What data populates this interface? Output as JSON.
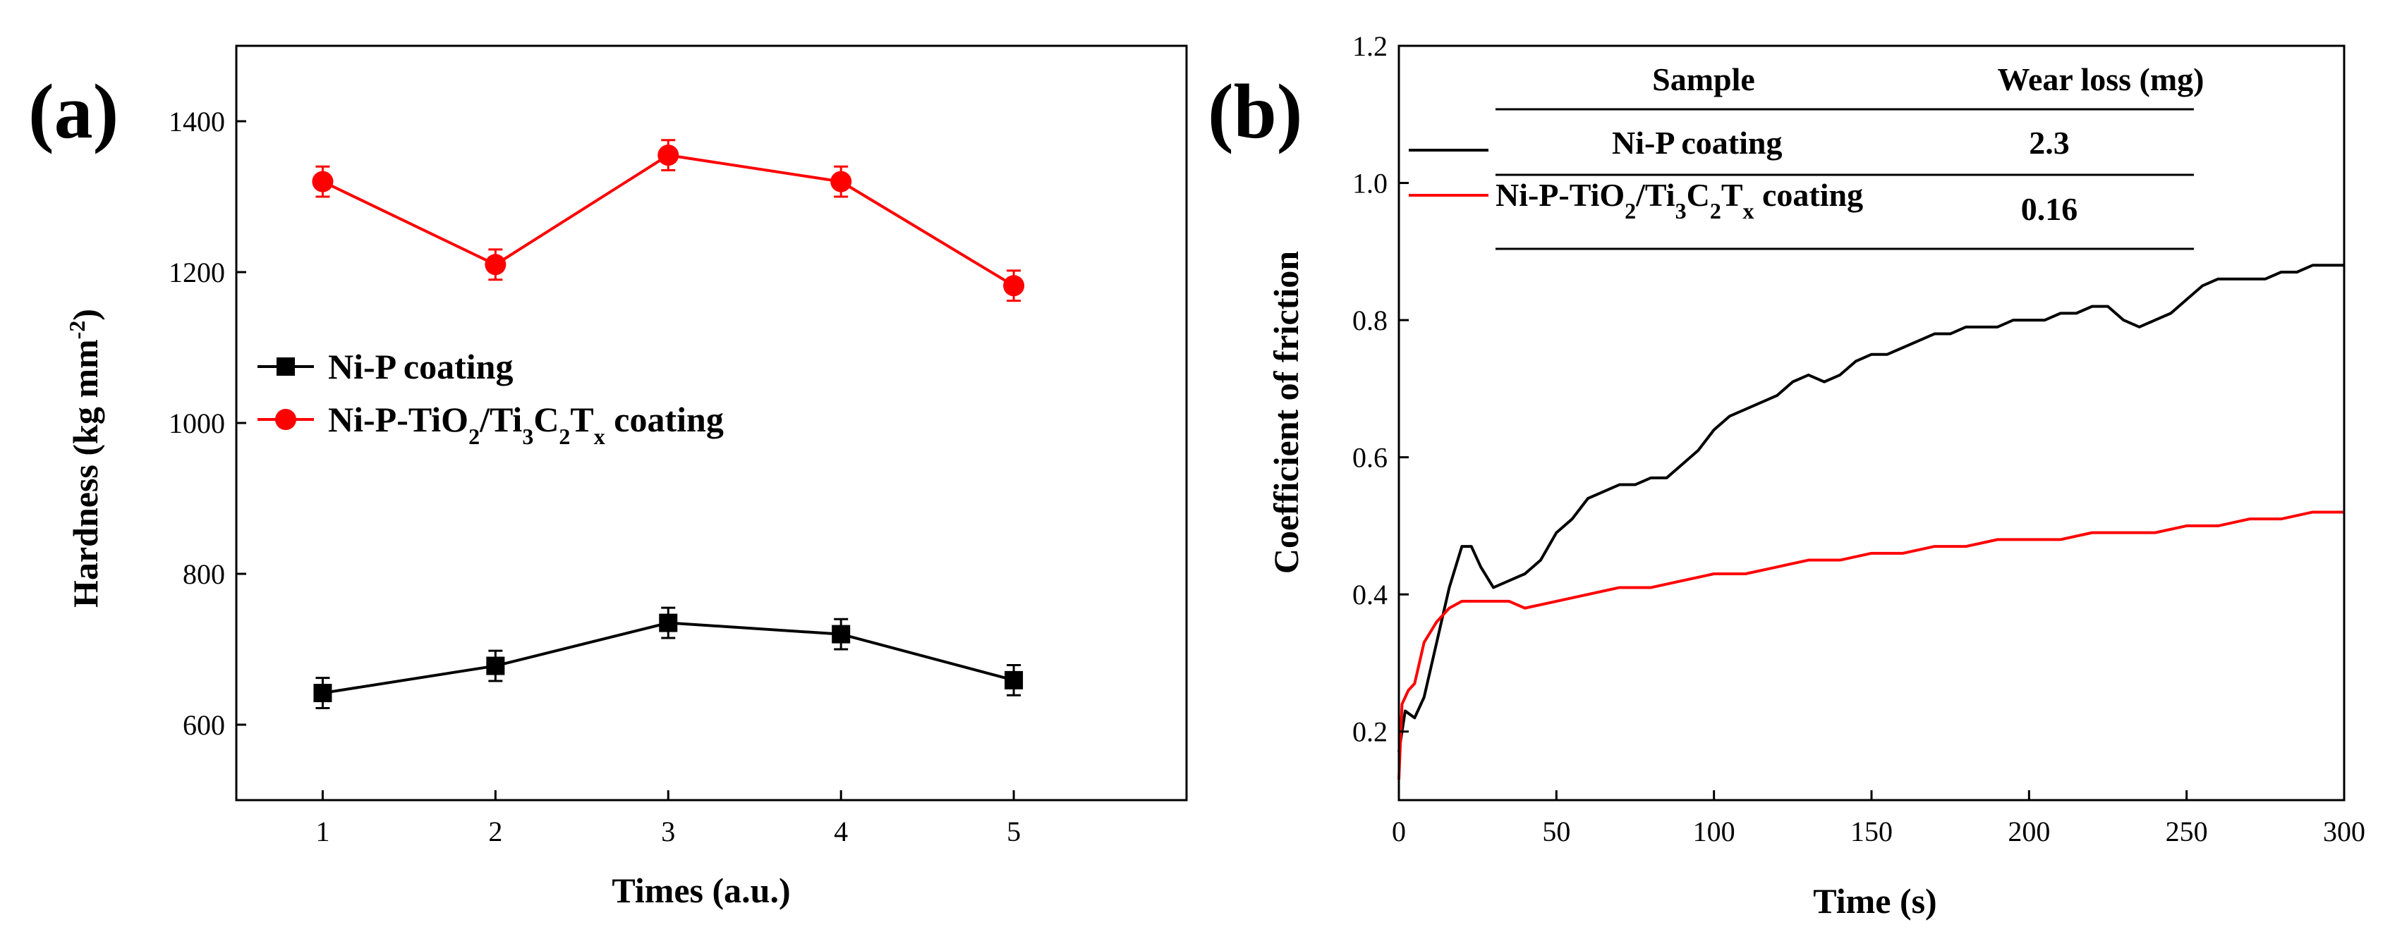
{
  "figure": {
    "background": "#ffffff"
  },
  "chart_data": [
    {
      "panel": "(a)",
      "type": "line",
      "xlabel": "Times (a.u.)",
      "ylabel_main": "Hardness (kg mm",
      "ylabel_sup": "-2",
      "ylabel_tail": ")",
      "xlim": [
        0.5,
        6
      ],
      "ylim": [
        500,
        1500
      ],
      "xticks": [
        1,
        2,
        3,
        4,
        5
      ],
      "yticks": [
        600,
        800,
        1000,
        1200,
        1400
      ],
      "legend_position": "center-left",
      "series": [
        {
          "name": "Ni-P coating",
          "name_parts": [
            [
              "Ni-P coating",
              ""
            ]
          ],
          "color": "#000000",
          "marker": "square",
          "x": [
            1,
            2,
            3,
            4,
            5
          ],
          "y": [
            642,
            678,
            735,
            720,
            659
          ],
          "err": [
            20,
            20,
            20,
            20,
            20
          ]
        },
        {
          "name": "Ni-P-TiO2/Ti3C2Tx coating",
          "name_parts": [
            [
              "Ni-P-TiO",
              ""
            ],
            [
              "2",
              "sub"
            ],
            [
              "/Ti",
              ""
            ],
            [
              "3",
              "sub"
            ],
            [
              "C",
              ""
            ],
            [
              "2",
              "sub"
            ],
            [
              "T",
              ""
            ],
            [
              "x",
              "sub"
            ],
            [
              " coating",
              ""
            ]
          ],
          "color": "#ff0000",
          "marker": "circle",
          "x": [
            1,
            2,
            3,
            4,
            5
          ],
          "y": [
            1320,
            1210,
            1355,
            1320,
            1182
          ],
          "err": [
            20,
            20,
            20,
            20,
            20
          ]
        }
      ]
    },
    {
      "panel": "(b)",
      "type": "line",
      "xlabel": "Time (s)",
      "ylabel": "Coefficient of friction",
      "xlim": [
        0,
        300
      ],
      "ylim": [
        0.1,
        1.2
      ],
      "xticks": [
        0,
        50,
        100,
        150,
        200,
        250,
        300
      ],
      "yticks": [
        0.2,
        0.4,
        0.6,
        0.8,
        1.0,
        1.2
      ],
      "ytick_labels": [
        "0.2",
        "0.4",
        "0.6",
        "0.8",
        "1.0",
        "1.2"
      ],
      "series": [
        {
          "name": "Ni-P coating",
          "color": "#000000",
          "x": [
            0,
            2,
            5,
            8,
            12,
            16,
            20,
            23,
            26,
            30,
            35,
            40,
            45,
            50,
            55,
            60,
            65,
            70,
            75,
            80,
            85,
            90,
            95,
            100,
            105,
            110,
            115,
            120,
            125,
            130,
            135,
            140,
            145,
            150,
            155,
            160,
            165,
            170,
            175,
            180,
            185,
            190,
            195,
            200,
            205,
            210,
            215,
            220,
            225,
            230,
            235,
            240,
            245,
            250,
            255,
            260,
            265,
            270,
            275,
            280,
            285,
            290,
            295,
            300
          ],
          "y": [
            0.17,
            0.23,
            0.22,
            0.25,
            0.33,
            0.41,
            0.47,
            0.47,
            0.44,
            0.41,
            0.42,
            0.43,
            0.45,
            0.49,
            0.51,
            0.54,
            0.55,
            0.56,
            0.56,
            0.57,
            0.57,
            0.59,
            0.61,
            0.64,
            0.66,
            0.67,
            0.68,
            0.69,
            0.71,
            0.72,
            0.71,
            0.72,
            0.74,
            0.75,
            0.75,
            0.76,
            0.77,
            0.78,
            0.78,
            0.79,
            0.79,
            0.79,
            0.8,
            0.8,
            0.8,
            0.81,
            0.81,
            0.82,
            0.82,
            0.8,
            0.79,
            0.8,
            0.81,
            0.83,
            0.85,
            0.86,
            0.86,
            0.86,
            0.86,
            0.87,
            0.87,
            0.88,
            0.88,
            0.88
          ]
        },
        {
          "name": "Ni-P-TiO2/Ti3C2Tx coating",
          "color": "#ff0000",
          "x": [
            0,
            1,
            3,
            5,
            8,
            12,
            16,
            20,
            25,
            30,
            35,
            40,
            50,
            60,
            70,
            80,
            90,
            100,
            110,
            120,
            130,
            140,
            150,
            160,
            170,
            180,
            190,
            200,
            210,
            220,
            230,
            240,
            250,
            260,
            270,
            280,
            290,
            300
          ],
          "y": [
            0.13,
            0.24,
            0.26,
            0.27,
            0.33,
            0.36,
            0.38,
            0.39,
            0.39,
            0.39,
            0.39,
            0.38,
            0.39,
            0.4,
            0.41,
            0.41,
            0.42,
            0.43,
            0.43,
            0.44,
            0.45,
            0.45,
            0.46,
            0.46,
            0.47,
            0.47,
            0.48,
            0.48,
            0.48,
            0.49,
            0.49,
            0.49,
            0.5,
            0.5,
            0.51,
            0.51,
            0.52,
            0.52
          ]
        }
      ],
      "table": {
        "headers": [
          "Sample",
          "Wear loss (mg)"
        ],
        "rows": [
          {
            "sample_parts": [
              [
                "Ni-P coating",
                ""
              ]
            ],
            "wear": "2.3",
            "line_color": "#000000"
          },
          {
            "sample_parts": [
              [
                "Ni-P-TiO",
                ""
              ],
              [
                "2",
                "sub"
              ],
              [
                "/Ti",
                ""
              ],
              [
                "3",
                "sub"
              ],
              [
                "C",
                ""
              ],
              [
                "2",
                "sub"
              ],
              [
                "T",
                ""
              ],
              [
                "x",
                "sub"
              ],
              [
                " coating",
                ""
              ]
            ],
            "wear": "0.16",
            "line_color": "#ff0000"
          }
        ]
      }
    }
  ]
}
